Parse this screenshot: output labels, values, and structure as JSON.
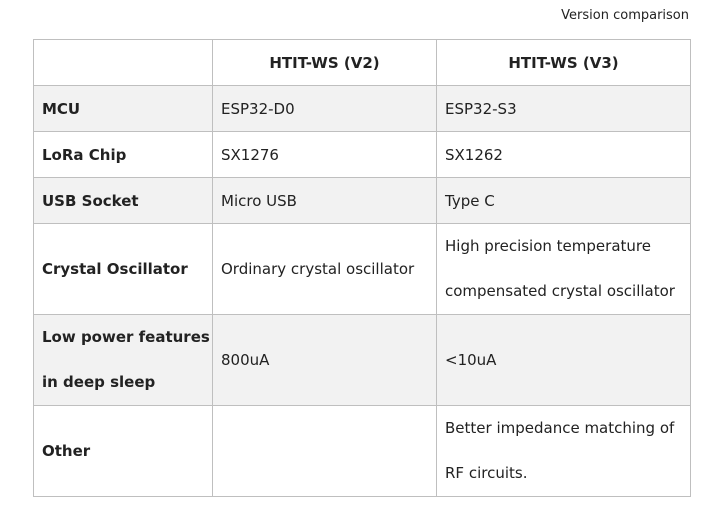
{
  "caption": "Version comparison",
  "table": {
    "headers": [
      "HTIT-WS (V2)",
      "HTIT-WS (V3)"
    ],
    "rows": [
      {
        "label": "MCU",
        "v2": "ESP32-D0",
        "v3": "ESP32-S3"
      },
      {
        "label": "LoRa Chip",
        "v2": "SX1276",
        "v3": "SX1262"
      },
      {
        "label": "USB Socket",
        "v2": "Micro USB",
        "v3": "Type C"
      },
      {
        "label": "Crystal Oscillator",
        "v2": "Ordinary crystal oscillator",
        "v3": [
          "High precision temperature",
          "compensated crystal oscillator"
        ]
      },
      {
        "label": [
          "Low power features",
          "in deep sleep"
        ],
        "v2": "800uA",
        "v3": "<10uA"
      },
      {
        "label": "Other",
        "v3": [
          "Better impedance matching of",
          "RF circuits."
        ]
      }
    ]
  }
}
